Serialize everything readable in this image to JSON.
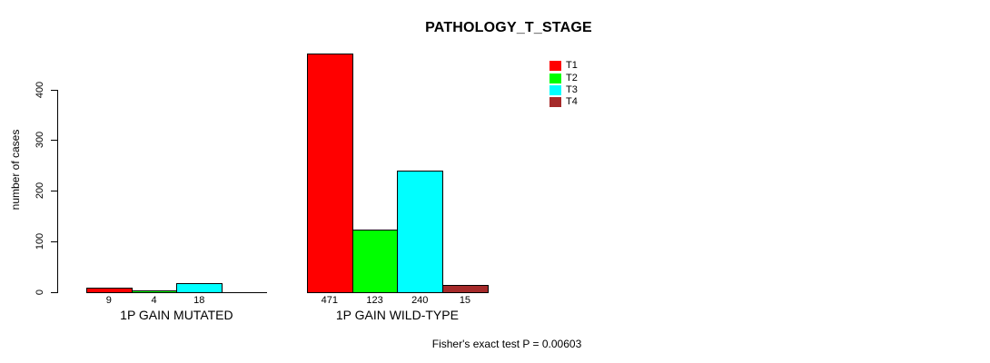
{
  "title": "PATHOLOGY_T_STAGE",
  "footer": "Fisher's exact test P = 0.00603",
  "y_axis": {
    "label": "number of cases",
    "ticks": [
      "0",
      "100",
      "200",
      "300",
      "400"
    ]
  },
  "legend": {
    "entries": [
      {
        "label": "T1",
        "color": "#ff0000"
      },
      {
        "label": "T2",
        "color": "#00ff00"
      },
      {
        "label": "T3",
        "color": "#00ffff"
      },
      {
        "label": "T4",
        "color": "#a52a2a"
      }
    ],
    "position": "top-right-inside"
  },
  "chart_data": {
    "type": "bar",
    "title": "PATHOLOGY_T_STAGE",
    "xlabel": "",
    "ylabel": "number of cases",
    "categories": [
      "1P GAIN MUTATED",
      "1P GAIN WILD-TYPE"
    ],
    "series": [
      {
        "name": "T1",
        "color": "#ff0000",
        "values": [
          9,
          471
        ]
      },
      {
        "name": "T2",
        "color": "#00ff00",
        "values": [
          4,
          123
        ]
      },
      {
        "name": "T3",
        "color": "#00ffff",
        "values": [
          18,
          240
        ]
      },
      {
        "name": "T4",
        "color": "#a52a2a",
        "values": [
          null,
          15
        ]
      }
    ],
    "bar_value_labels": [
      [
        "9",
        "4",
        "18",
        null
      ],
      [
        "471",
        "123",
        "240",
        "15"
      ]
    ],
    "yticks": [
      0,
      100,
      200,
      300,
      400
    ],
    "ylim": [
      0,
      480
    ],
    "grid": false,
    "legend_position": "top-right-inside",
    "annotation": "Fisher's exact test P = 0.00603"
  }
}
